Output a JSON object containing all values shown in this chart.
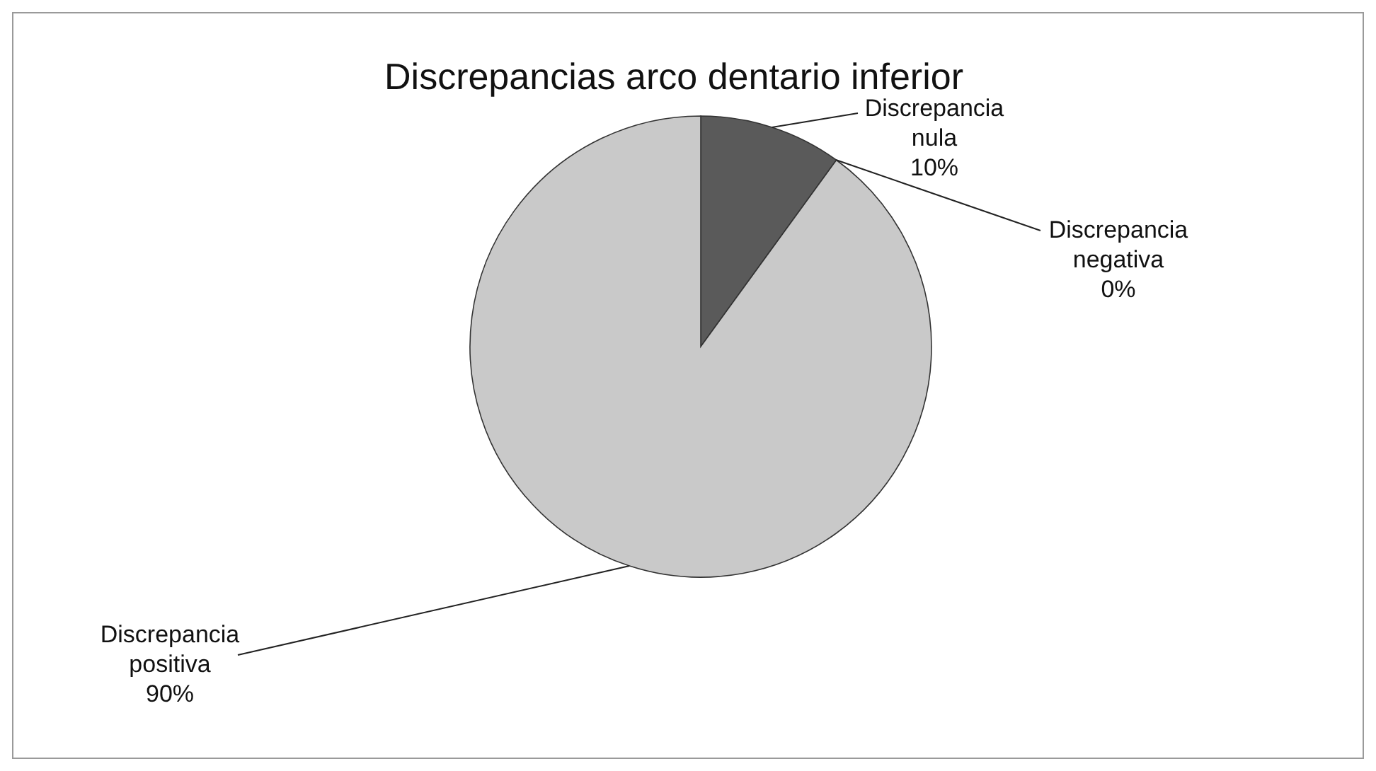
{
  "chart_data": {
    "type": "pie",
    "title": "Discrepancias arco dentario inferior",
    "categories": [
      "Discrepancia nula",
      "Discrepancia negativa",
      "Discrepancia positiva"
    ],
    "values": [
      10,
      0,
      90
    ],
    "colors": [
      "#5a5a5a",
      "#9a9a9a",
      "#c9c9c9"
    ],
    "value_labels": [
      "10%",
      "0%",
      "90%"
    ],
    "legend": false
  }
}
